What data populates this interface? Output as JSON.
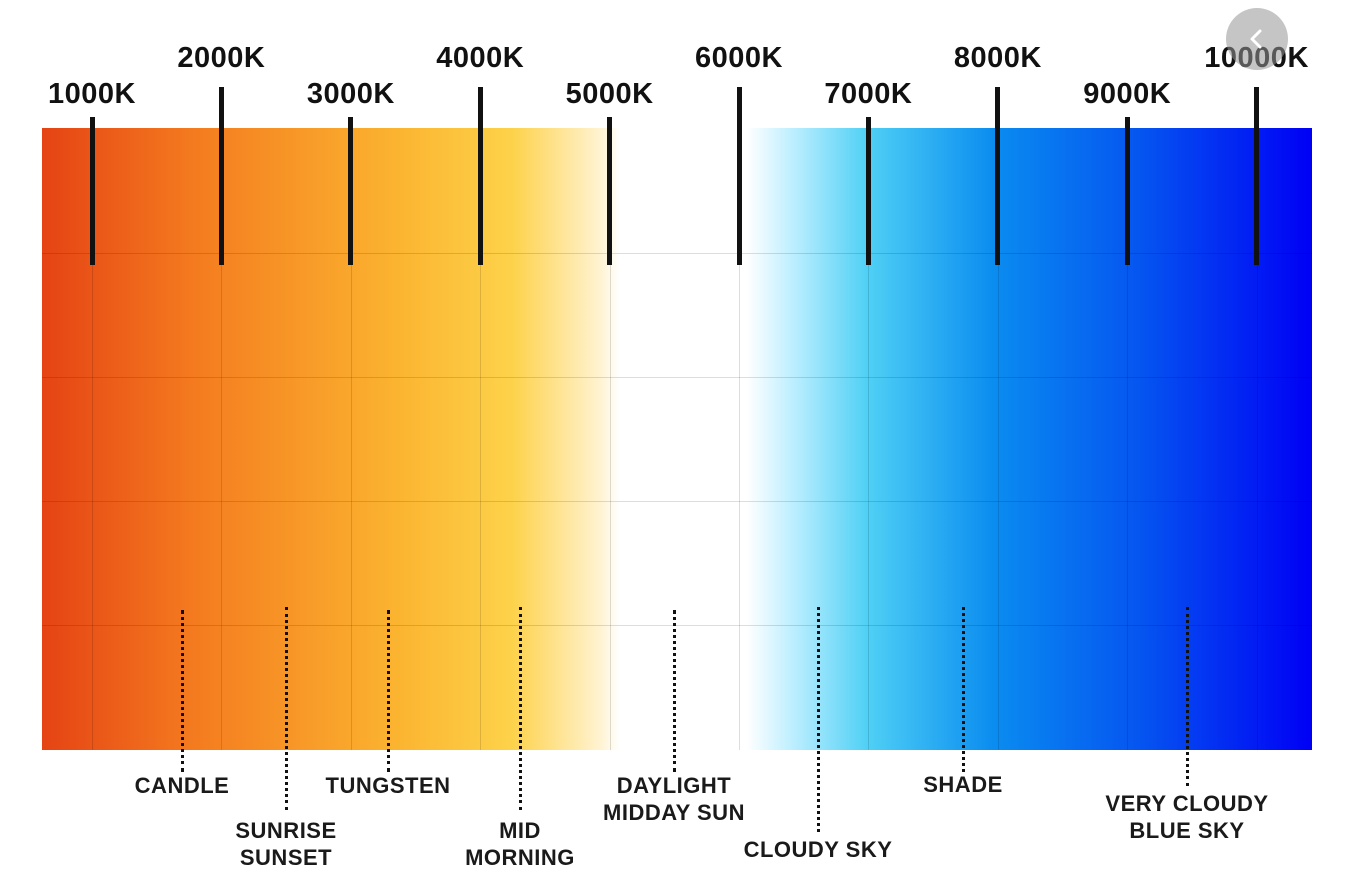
{
  "diagram": {
    "gradient_colors": [
      "#e54314",
      "#f47b1f",
      "#fbb430",
      "#fdd24a",
      "#fff3d2",
      "#ffffff",
      "#ffffff",
      "#bfefff",
      "#4fd0f5",
      "#0a8cf0",
      "#0552f0",
      "#0000f5"
    ],
    "kelvin_markers": [
      {
        "label": "1000K",
        "value": 1000
      },
      {
        "label": "2000K",
        "value": 2000
      },
      {
        "label": "3000K",
        "value": 3000
      },
      {
        "label": "4000K",
        "value": 4000
      },
      {
        "label": "5000K",
        "value": 5000
      },
      {
        "label": "6000K",
        "value": 6000
      },
      {
        "label": "7000K",
        "value": 7000
      },
      {
        "label": "8000K",
        "value": 8000
      },
      {
        "label": "9000K",
        "value": 9000
      },
      {
        "label": "10000K",
        "value": 10000
      }
    ],
    "light_sources": [
      {
        "lines": [
          "CANDLE"
        ],
        "kelvin": 1700
      },
      {
        "lines": [
          "SUNRISE",
          "SUNSET"
        ],
        "kelvin": 2500
      },
      {
        "lines": [
          "TUNGSTEN"
        ],
        "kelvin": 3300
      },
      {
        "lines": [
          "MID",
          "MORNING"
        ],
        "kelvin": 4300
      },
      {
        "lines": [
          "DAYLIGHT",
          "MIDDAY SUN"
        ],
        "kelvin": 5500
      },
      {
        "lines": [
          "CLOUDY SKY"
        ],
        "kelvin": 6600
      },
      {
        "lines": [
          "SHADE"
        ],
        "kelvin": 7700
      },
      {
        "lines": [
          "VERY CLOUDY",
          "BLUE SKY"
        ],
        "kelvin": 9500
      }
    ]
  },
  "controls": {
    "back_icon": "chevron-left-icon"
  }
}
